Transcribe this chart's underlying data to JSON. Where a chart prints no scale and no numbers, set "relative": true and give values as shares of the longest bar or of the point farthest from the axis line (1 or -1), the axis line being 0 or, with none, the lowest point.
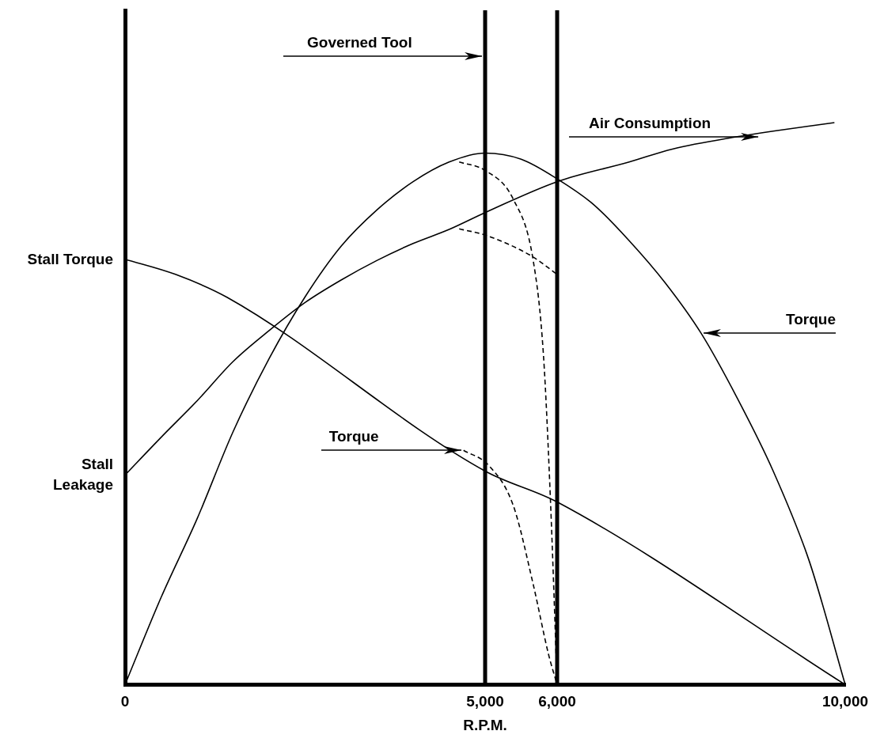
{
  "chart_data": {
    "type": "line",
    "relative": true,
    "xlabel": "R.P.M.",
    "xlim": [
      0,
      10000
    ],
    "xticks": [
      0,
      {
        "value": 5000,
        "label": "5,000"
      },
      {
        "value": 6000,
        "label": "6,000"
      },
      {
        "value": 10000,
        "label": "10,000"
      }
    ],
    "grid": false,
    "legend": false,
    "marker": "none",
    "line_style": "solid",
    "series": [
      {
        "color": "#000000",
        "x": [
          0,
          700,
          1420,
          5000,
          6000,
          10000
        ],
        "values": [
          0.757,
          0.73,
          0.689,
          0.38,
          0.325,
          0
        ]
      },
      {
        "color": "#000000",
        "x": [
          0,
          500,
          1000,
          1500,
          2000,
          2500,
          3000,
          3500,
          4000,
          4500,
          5000,
          5500,
          6000,
          6500,
          7000,
          7500,
          8000,
          8500,
          9000,
          9500,
          10000
        ],
        "values": [
          0,
          0.155,
          0.295,
          0.45,
          0.58,
          0.69,
          0.78,
          0.845,
          0.895,
          0.93,
          0.946,
          0.935,
          0.9,
          0.855,
          0.79,
          0.715,
          0.625,
          0.51,
          0.38,
          0.22,
          0
        ]
      },
      {
        "color": "#000000",
        "x": [
          0,
          500,
          1000,
          1500,
          2000,
          2500,
          3000,
          3500,
          4000,
          4500,
          5000,
          6000,
          7000,
          7600,
          8500,
          9000,
          9850
        ],
        "values": [
          0.373,
          0.44,
          0.505,
          0.575,
          0.63,
          0.68,
          0.72,
          0.755,
          0.785,
          0.81,
          0.84,
          0.895,
          0.93,
          0.953,
          0.975,
          0.985,
          1
        ]
      },
      {
        "color": "#000000",
        "line_style": "dashed",
        "x": [
          4640,
          5000,
          5390,
          5670,
          5810,
          5910,
          6000
        ],
        "values": [
          0.93,
          0.915,
          0.864,
          0.753,
          0.586,
          0.319,
          0
        ]
      },
      {
        "color": "#000000",
        "line_style": "dashed",
        "x": [
          4640,
          5000,
          5640,
          6000
        ],
        "values": [
          0.811,
          0.8,
          0.763,
          0.73
        ]
      },
      {
        "color": "#000000",
        "line_style": "dashed",
        "x": [
          4700,
          5050,
          5390,
          5670,
          5880,
          6000
        ],
        "values": [
          0.417,
          0.39,
          0.319,
          0.177,
          0.054,
          0
        ]
      }
    ],
    "ref_lines": [
      {
        "axis": "x",
        "value": 5000,
        "label": "Governed Tool",
        "color": "#000000"
      },
      {
        "axis": "x",
        "value": 6000,
        "color": "#000000"
      }
    ],
    "annotations": [
      {
        "text": "Stall Torque",
        "x": 0,
        "y": 0.757
      },
      {
        "text": "Stall Leakage",
        "x": 0,
        "y": 0.373
      },
      "Air Consumption",
      {
        "text": "Torque",
        "x": 4700,
        "y": 0.417
      },
      {
        "text": "Torque",
        "x": 8000,
        "y": 0.625
      }
    ]
  }
}
